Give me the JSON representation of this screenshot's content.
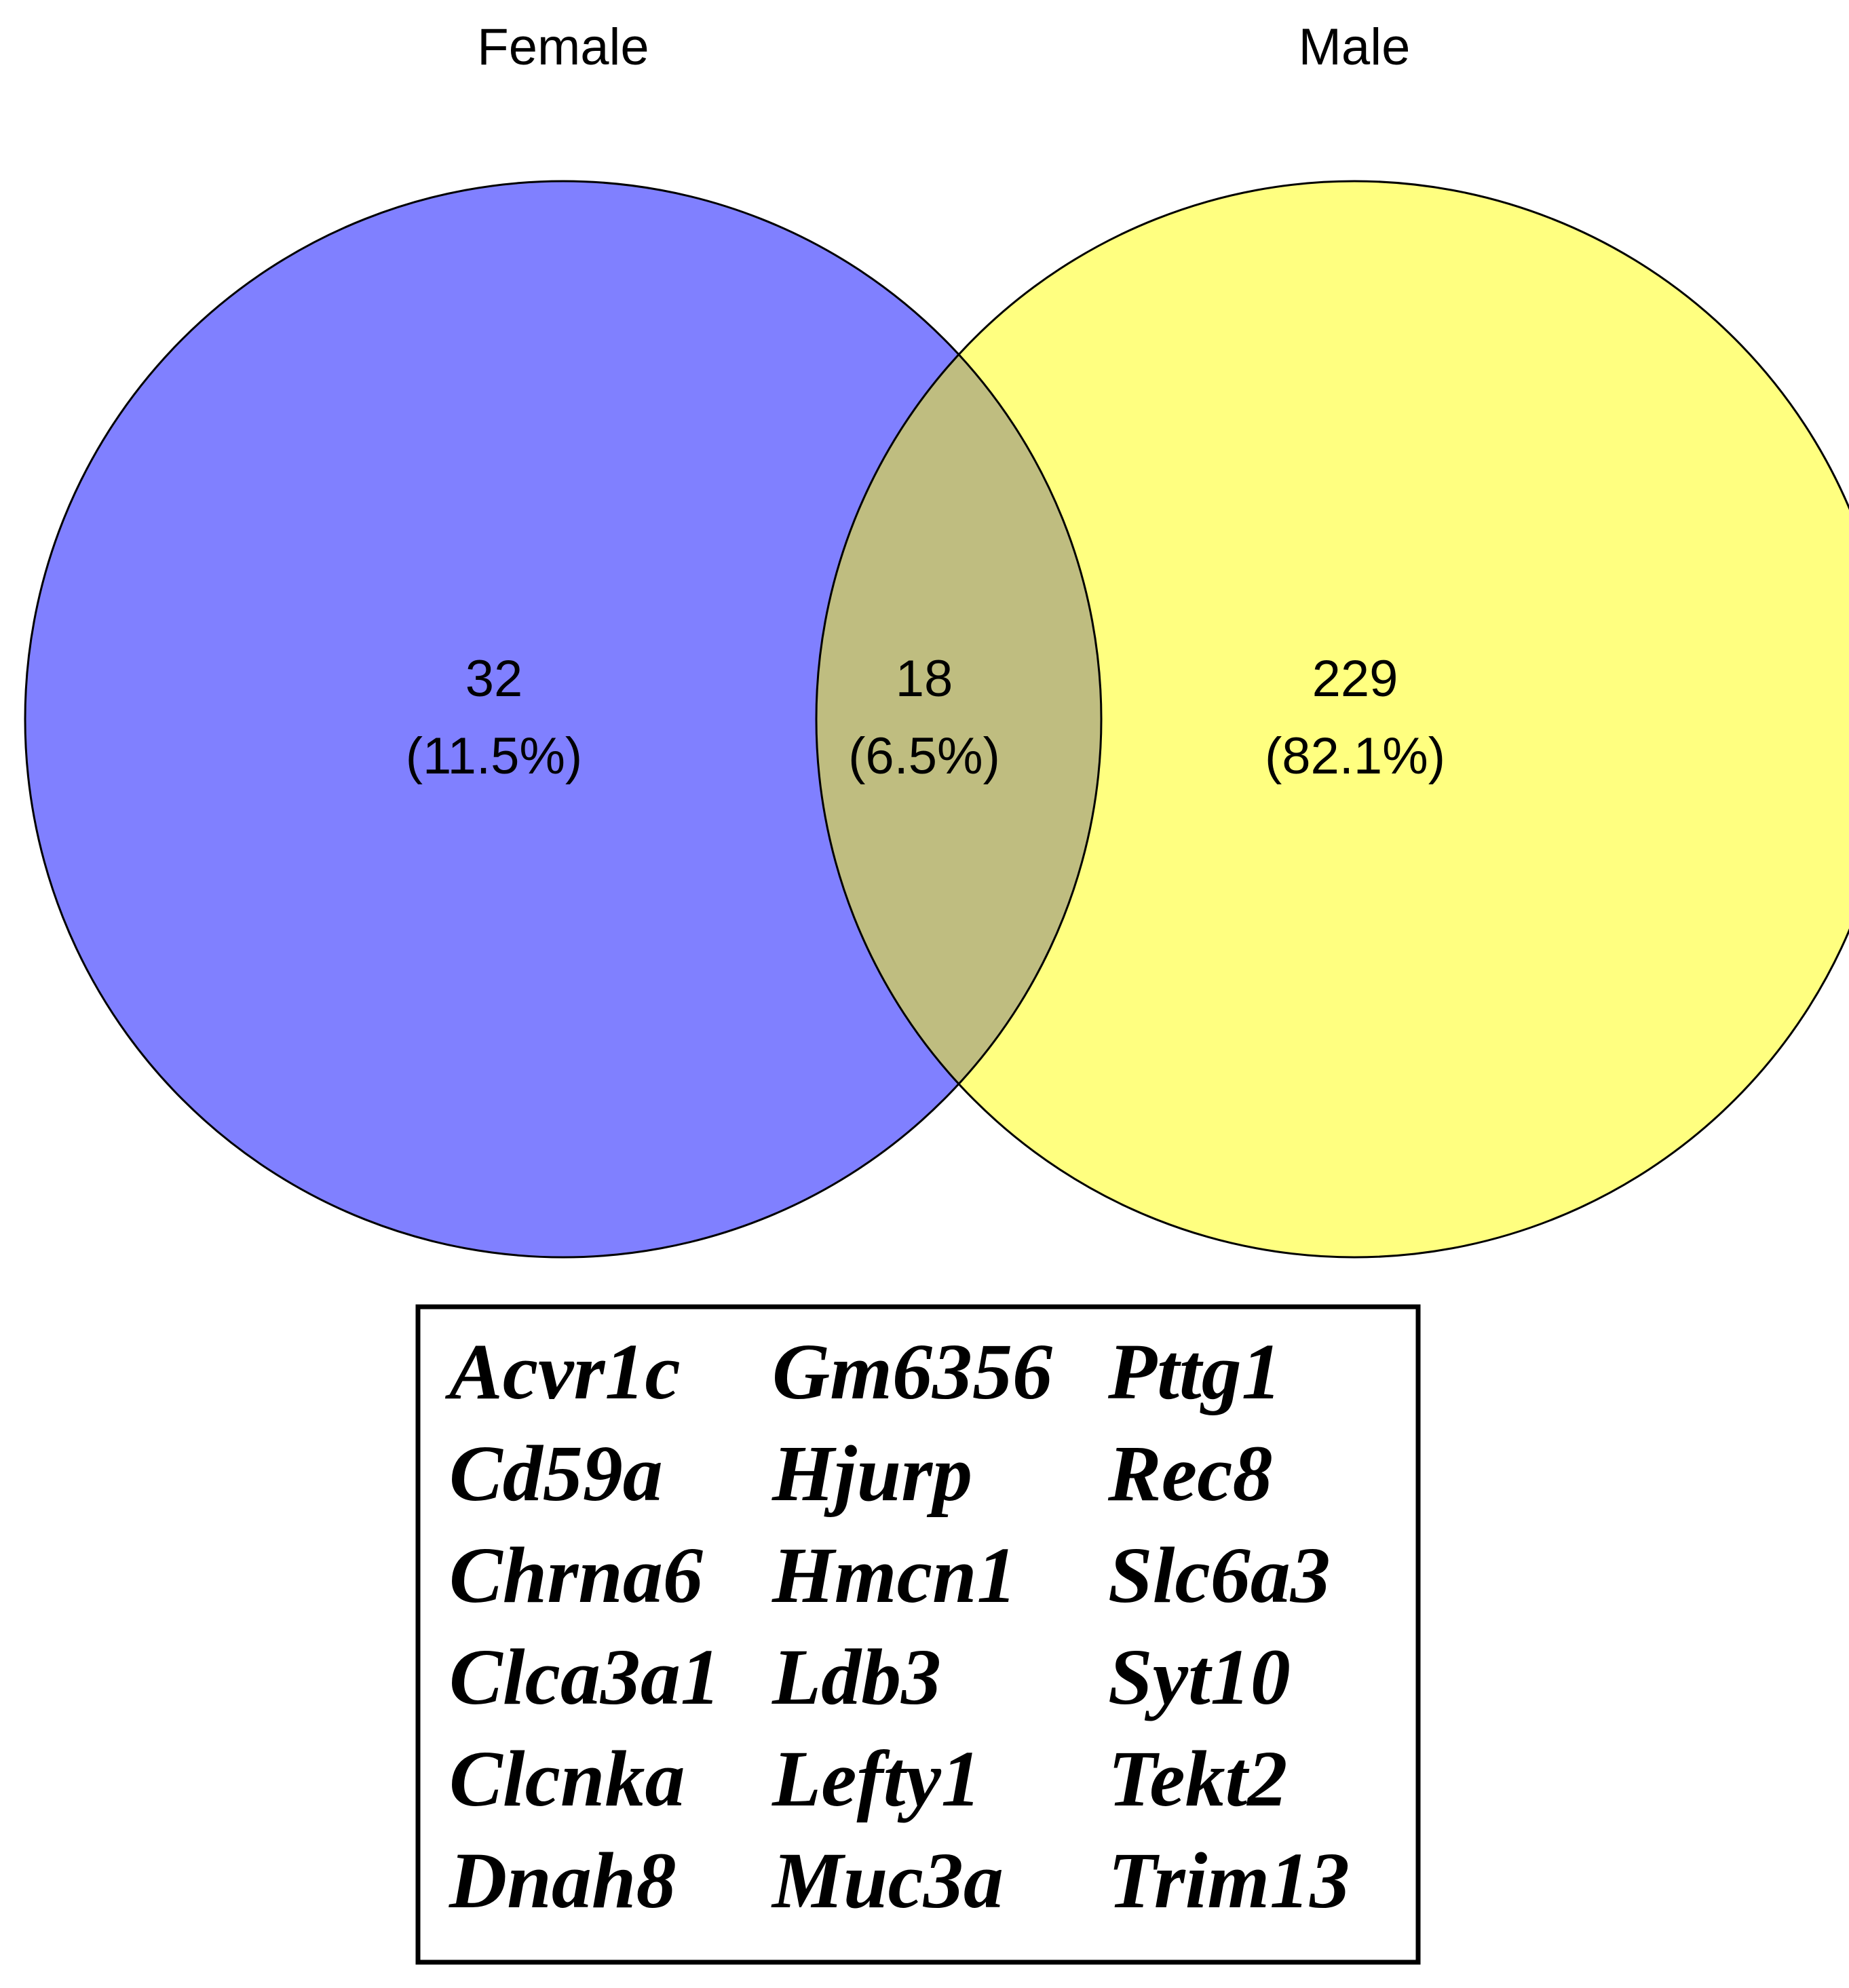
{
  "chart_data": {
    "type": "venn",
    "sets": [
      {
        "name": "Female",
        "color": "#8080ff"
      },
      {
        "name": "Male",
        "color": "#ffff80"
      }
    ],
    "overlap_color": "#bfbd80",
    "regions": [
      "Female",
      "Female & Male",
      "Male"
    ],
    "counts": [
      32,
      18,
      229
    ],
    "percents": [
      11.5,
      6.5,
      82.1
    ],
    "percent_labels": [
      "(11.5%)",
      "(6.5%)",
      "(82.1%)"
    ],
    "shared_genes": [
      "Acvr1c",
      "Cd59a",
      "Chrna6",
      "Clca3a1",
      "Clcnka",
      "Dnah8",
      "Gm6356",
      "Hjurp",
      "Hmcn1",
      "Ldb3",
      "Lefty1",
      "Muc3a",
      "Pttg1",
      "Rec8",
      "Slc6a3",
      "Syt10",
      "Tekt2",
      "Trim13"
    ]
  }
}
